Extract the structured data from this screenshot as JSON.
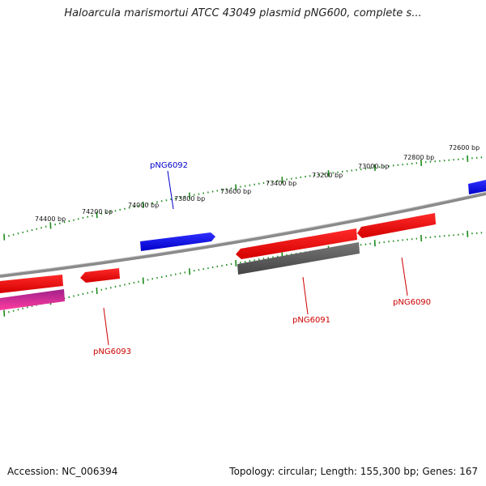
{
  "title": "Haloarcula marismortui ATCC 43049 plasmid pNG600, complete s...",
  "footer": {
    "accession": "Accession: NC_006394",
    "summary": "Topology: circular; Length: 155,300 bp; Genes: 167"
  },
  "colors": {
    "backbone": "#8a8a8a",
    "tick": "#1a8a1a",
    "forward_gene": "#0000ee",
    "reverse_gene": "#ee0000",
    "gray_feature": "#5a5a5a",
    "magenta_feature": "#e0207a",
    "forward_label": "#0000cc",
    "reverse_label": "#cc0000"
  },
  "scale_labels": [
    "74400 bp",
    "74200 bp",
    "74000 bp",
    "73800 bp",
    "73600 bp",
    "73400 bp",
    "73200 bp",
    "73000 bp",
    "72800 bp",
    "72600 bp"
  ],
  "gene_labels": {
    "forward": [
      "pNG6092"
    ],
    "reverse": [
      "pNG6093",
      "pNG6091",
      "pNG6090"
    ]
  }
}
